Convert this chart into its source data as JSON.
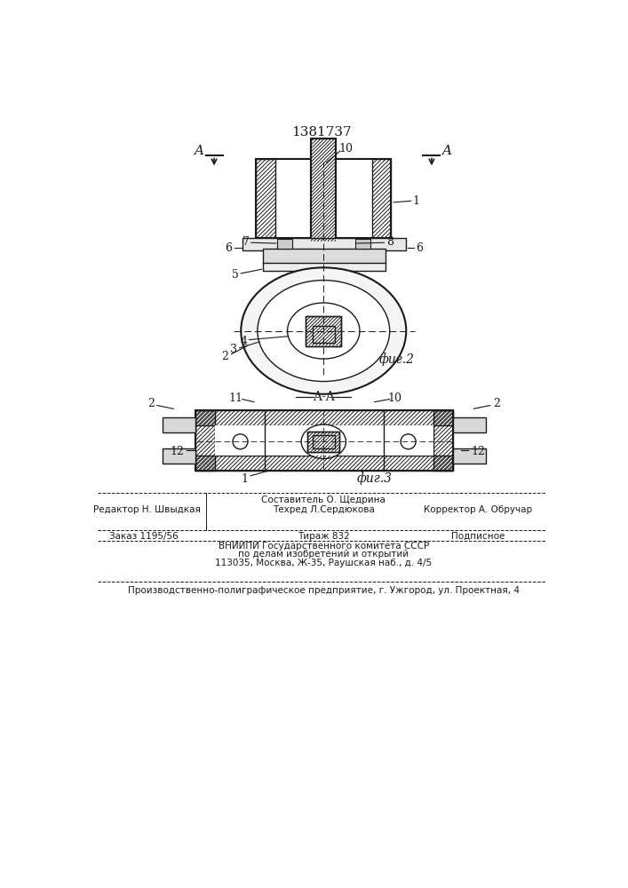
{
  "title": "1381737",
  "fig2_label": "фиг.2",
  "fig3_label": "фиг.3",
  "bg_color": "#ffffff",
  "line_color": "#1a1a1a"
}
